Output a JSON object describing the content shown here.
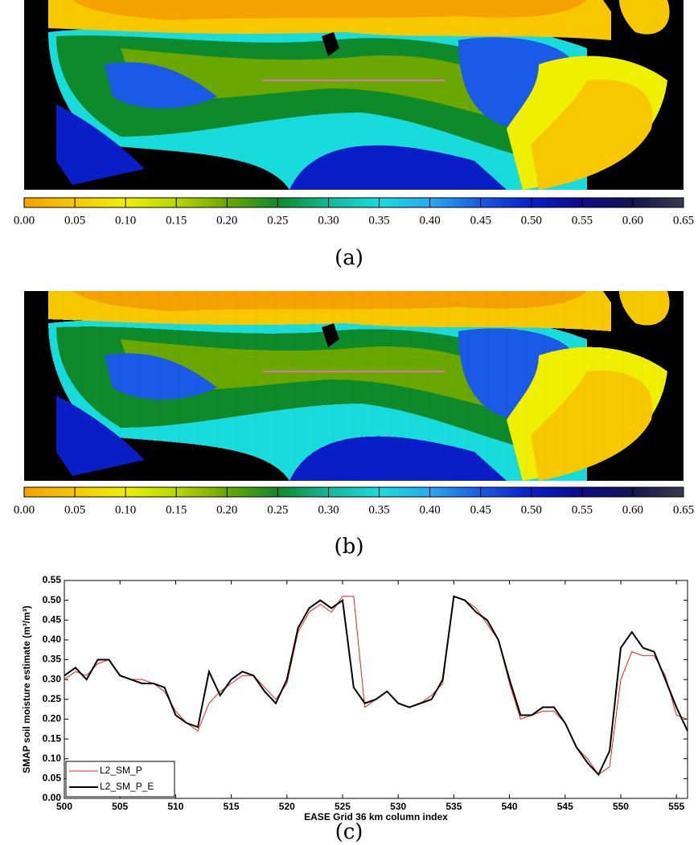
{
  "chart_data": [
    {
      "type": "map",
      "caption": "(a)",
      "pixelation": 1,
      "colorbar": {
        "ticks": [
          {
            "value": 0,
            "label": "0.00"
          },
          {
            "value": 0.05,
            "label": "0.05"
          },
          {
            "value": 0.1,
            "label": "0.10"
          },
          {
            "value": 0.15,
            "label": "0.15"
          },
          {
            "value": 0.2,
            "label": "0.20"
          },
          {
            "value": 0.25,
            "label": "0.25"
          },
          {
            "value": 0.3,
            "label": "0.30"
          },
          {
            "value": 0.35,
            "label": "0.35"
          },
          {
            "value": 0.4,
            "label": "0.40"
          },
          {
            "value": 0.45,
            "label": "0.45"
          },
          {
            "value": 0.5,
            "label": "0.50"
          },
          {
            "value": 0.55,
            "label": "0.55"
          },
          {
            "value": 0.6,
            "label": "0.60"
          },
          {
            "value": 0.65,
            "label": "0.65"
          }
        ],
        "colors": [
          "#f5a200",
          "#f7c800",
          "#eef000",
          "#b8d800",
          "#6aa800",
          "#0f8a2a",
          "#13b89a",
          "#18dcdc",
          "#2aa8f0",
          "#1a5ae6",
          "#0a1ec8",
          "#0c0c8a",
          "#141450",
          "#3a3a50"
        ]
      }
    },
    {
      "type": "map",
      "caption": "(b)",
      "pixelation": 8,
      "colorbar": {
        "ticks": [
          {
            "value": 0,
            "label": "0.00"
          },
          {
            "value": 0.05,
            "label": "0.05"
          },
          {
            "value": 0.1,
            "label": "0.10"
          },
          {
            "value": 0.15,
            "label": "0.15"
          },
          {
            "value": 0.2,
            "label": "0.20"
          },
          {
            "value": 0.25,
            "label": "0.25"
          },
          {
            "value": 0.3,
            "label": "0.30"
          },
          {
            "value": 0.35,
            "label": "0.35"
          },
          {
            "value": 0.4,
            "label": "0.40"
          },
          {
            "value": 0.45,
            "label": "0.45"
          },
          {
            "value": 0.5,
            "label": "0.50"
          },
          {
            "value": 0.55,
            "label": "0.55"
          },
          {
            "value": 0.6,
            "label": "0.60"
          },
          {
            "value": 0.65,
            "label": "0.65"
          }
        ],
        "colors": [
          "#f5a200",
          "#f7c800",
          "#eef000",
          "#b8d800",
          "#6aa800",
          "#0f8a2a",
          "#13b89a",
          "#18dcdc",
          "#2aa8f0",
          "#1a5ae6",
          "#0a1ec8",
          "#0c0c8a",
          "#141450",
          "#3a3a50"
        ]
      }
    },
    {
      "type": "line",
      "caption": "(c)",
      "xlabel": "EASE Grid 36 km column index",
      "ylabel": "SMAP soil moisture estimate (m³/m³)",
      "x": [
        500,
        501,
        502,
        503,
        504,
        505,
        506,
        507,
        508,
        509,
        510,
        511,
        512,
        513,
        514,
        515,
        516,
        517,
        518,
        519,
        520,
        521,
        522,
        523,
        524,
        525,
        526,
        527,
        528,
        529,
        530,
        531,
        532,
        533,
        534,
        535,
        536,
        537,
        538,
        539,
        540,
        541,
        542,
        543,
        544,
        545,
        546,
        547,
        548,
        549,
        550,
        551,
        552,
        553,
        554,
        555,
        556
      ],
      "series": [
        {
          "name": "L2_SM_P",
          "color": "#e8241c",
          "width": 1,
          "values": [
            0.3,
            0.32,
            0.31,
            0.34,
            0.35,
            0.31,
            0.3,
            0.3,
            0.29,
            0.27,
            0.22,
            0.19,
            0.17,
            0.24,
            0.27,
            0.29,
            0.31,
            0.31,
            0.28,
            0.25,
            0.29,
            0.42,
            0.47,
            0.49,
            0.47,
            0.51,
            0.51,
            0.23,
            0.25,
            0.27,
            0.24,
            0.23,
            0.24,
            0.26,
            0.29,
            0.51,
            0.5,
            0.48,
            0.44,
            0.4,
            0.29,
            0.2,
            0.21,
            0.22,
            0.22,
            0.19,
            0.13,
            0.1,
            0.06,
            0.08,
            0.3,
            0.37,
            0.36,
            0.36,
            0.31,
            0.21,
            0.2
          ]
        },
        {
          "name": "L2_SM_P_E",
          "color": "#000000",
          "width": 2,
          "values": [
            0.31,
            0.33,
            0.3,
            0.35,
            0.35,
            0.31,
            0.3,
            0.29,
            0.29,
            0.28,
            0.21,
            0.19,
            0.18,
            0.32,
            0.26,
            0.3,
            0.32,
            0.31,
            0.27,
            0.24,
            0.3,
            0.43,
            0.48,
            0.5,
            0.48,
            0.5,
            0.28,
            0.24,
            0.25,
            0.27,
            0.24,
            0.23,
            0.24,
            0.25,
            0.3,
            0.51,
            0.5,
            0.47,
            0.45,
            0.4,
            0.3,
            0.21,
            0.21,
            0.23,
            0.23,
            0.19,
            0.13,
            0.09,
            0.06,
            0.12,
            0.38,
            0.42,
            0.38,
            0.37,
            0.3,
            0.23,
            0.17
          ]
        }
      ],
      "xlim": [
        500,
        556
      ],
      "xticks": [
        500,
        505,
        510,
        515,
        520,
        525,
        530,
        535,
        540,
        545,
        550,
        555
      ],
      "ylim": [
        0,
        0.55
      ],
      "yticks": [
        {
          "value": 0,
          "label": "0.00"
        },
        {
          "value": 0.05,
          "label": "0.05"
        },
        {
          "value": 0.1,
          "label": "0.10"
        },
        {
          "value": 0.15,
          "label": "0.15"
        },
        {
          "value": 0.2,
          "label": "0.20"
        },
        {
          "value": 0.25,
          "label": "0.25"
        },
        {
          "value": 0.3,
          "label": "0.30"
        },
        {
          "value": 0.35,
          "label": "0.35"
        },
        {
          "value": 0.4,
          "label": "0.40"
        },
        {
          "value": 0.45,
          "label": "0.45"
        },
        {
          "value": 0.5,
          "label": "0.50"
        },
        {
          "value": 0.55,
          "label": "0.55"
        }
      ],
      "legend": "lower left"
    }
  ]
}
